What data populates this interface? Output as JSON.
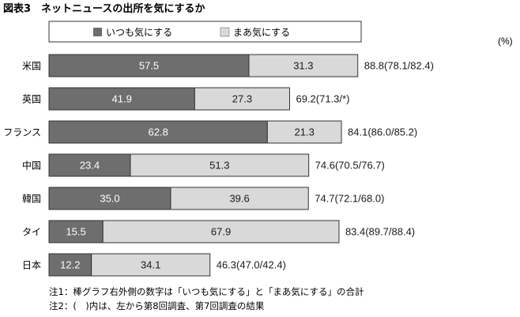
{
  "colors": {
    "series1": "#6e6e6e",
    "series2": "#d9d9d9",
    "border": "#333333",
    "text_on_dark": "#ffffff",
    "text_on_light": "#1a1a1a"
  },
  "chart_data": {
    "type": "bar",
    "orientation": "horizontal",
    "stacked": true,
    "title": "図表3　ネットニュースの出所を気にするか",
    "unit_label": "(%)",
    "xlim": [
      0,
      100
    ],
    "grid": false,
    "legend_position": "top",
    "categories": [
      "米国",
      "英国",
      "フランス",
      "中国",
      "韓国",
      "タイ",
      "日本"
    ],
    "series": [
      {
        "name": "いつも気にする",
        "values": [
          57.5,
          41.9,
          62.8,
          23.4,
          35.0,
          15.5,
          12.2
        ]
      },
      {
        "name": "まあ気にする",
        "values": [
          31.3,
          27.3,
          21.3,
          51.3,
          39.6,
          67.9,
          34.1
        ]
      }
    ],
    "value_labels": [
      [
        "57.5",
        "31.3"
      ],
      [
        "41.9",
        "27.3"
      ],
      [
        "62.8",
        "21.3"
      ],
      [
        "23.4",
        "51.3"
      ],
      [
        "35.0",
        "39.6"
      ],
      [
        "15.5",
        "67.9"
      ],
      [
        "12.2",
        "34.1"
      ]
    ],
    "total_labels": [
      "88.8(78.1/82.4)",
      "69.2(71.3/*)",
      "84.1(86.0/85.2)",
      "74.6(70.5/76.7)",
      "74.7(72.1/68.0)",
      "83.4(89.7/88.4)",
      "46.3(47.0/42.4)"
    ],
    "notes": [
      "注1：棒グラフ右外側の数字は「いつも気にする」と「まあ気にする」の合計",
      "注2：(　)内は、左から第8回調査、第7回調査の結果"
    ]
  }
}
